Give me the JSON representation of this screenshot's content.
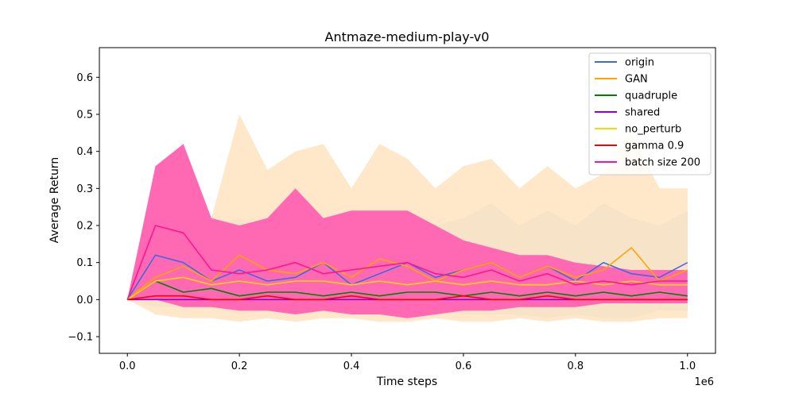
{
  "chart_data": {
    "type": "line",
    "title": "Antmaze-medium-play-v0",
    "xlabel": "Time steps",
    "ylabel": "Average Return",
    "x_offset_label": "1e6",
    "xlim": [
      -0.05,
      1.05
    ],
    "ylim": [
      -0.145,
      0.68
    ],
    "x_ticks": [
      0.0,
      0.2,
      0.4,
      0.6,
      0.8,
      1.0
    ],
    "x_tick_labels": [
      "0.0",
      "0.2",
      "0.4",
      "0.6",
      "0.8",
      "1.0"
    ],
    "y_ticks": [
      -0.1,
      0.0,
      0.1,
      0.2,
      0.3,
      0.4,
      0.5,
      0.6
    ],
    "y_tick_labels": [
      "−0.1",
      "0.0",
      "0.1",
      "0.2",
      "0.3",
      "0.4",
      "0.5",
      "0.6"
    ],
    "legend_position": "top-right",
    "grid": false,
    "x": [
      0.0,
      0.05,
      0.1,
      0.15,
      0.2,
      0.25,
      0.3,
      0.35,
      0.4,
      0.45,
      0.5,
      0.55,
      0.6,
      0.65,
      0.7,
      0.75,
      0.8,
      0.85,
      0.9,
      0.95,
      1.0
    ],
    "series": [
      {
        "name": "origin",
        "color": "#4169e1",
        "band_color": "#a8d5e2",
        "values": [
          0.0,
          0.12,
          0.1,
          0.05,
          0.08,
          0.05,
          0.06,
          0.1,
          0.04,
          0.07,
          0.1,
          0.06,
          0.08,
          0.1,
          0.06,
          0.09,
          0.05,
          0.1,
          0.07,
          0.06,
          0.1
        ],
        "band": [
          [
            0.0,
            0.0
          ],
          [
            -0.02,
            0.28
          ],
          [
            -0.02,
            0.25
          ],
          [
            -0.02,
            0.2
          ],
          [
            -0.04,
            0.22
          ],
          [
            -0.03,
            0.18
          ],
          [
            -0.04,
            0.2
          ],
          [
            -0.03,
            0.22
          ],
          [
            -0.04,
            0.18
          ],
          [
            -0.03,
            0.2
          ],
          [
            -0.05,
            0.24
          ],
          [
            -0.03,
            0.2
          ],
          [
            -0.04,
            0.22
          ],
          [
            -0.04,
            0.26
          ],
          [
            -0.04,
            0.2
          ],
          [
            -0.05,
            0.24
          ],
          [
            -0.04,
            0.2
          ],
          [
            -0.05,
            0.26
          ],
          [
            -0.05,
            0.22
          ],
          [
            -0.03,
            0.2
          ],
          [
            -0.03,
            0.24
          ]
        ]
      },
      {
        "name": "GAN",
        "color": "#ffa500",
        "band_color": "#ffe4c4",
        "values": [
          0.0,
          0.06,
          0.09,
          0.05,
          0.12,
          0.08,
          0.07,
          0.1,
          0.06,
          0.11,
          0.09,
          0.05,
          0.08,
          0.1,
          0.06,
          0.09,
          0.06,
          0.08,
          0.14,
          0.05,
          0.08
        ],
        "band": [
          [
            0.0,
            0.0
          ],
          [
            -0.04,
            0.2
          ],
          [
            -0.05,
            0.3
          ],
          [
            -0.05,
            0.22
          ],
          [
            -0.06,
            0.5
          ],
          [
            -0.05,
            0.35
          ],
          [
            -0.06,
            0.4
          ],
          [
            -0.05,
            0.42
          ],
          [
            -0.05,
            0.3
          ],
          [
            -0.06,
            0.42
          ],
          [
            -0.06,
            0.38
          ],
          [
            -0.05,
            0.3
          ],
          [
            -0.06,
            0.36
          ],
          [
            -0.06,
            0.38
          ],
          [
            -0.05,
            0.3
          ],
          [
            -0.06,
            0.36
          ],
          [
            -0.05,
            0.3
          ],
          [
            -0.06,
            0.34
          ],
          [
            -0.06,
            0.45
          ],
          [
            -0.05,
            0.3
          ],
          [
            -0.05,
            0.3
          ]
        ]
      },
      {
        "name": "quadruple",
        "color": "#008000",
        "values": [
          0.0,
          0.05,
          0.02,
          0.03,
          0.01,
          0.02,
          0.02,
          0.01,
          0.02,
          0.01,
          0.02,
          0.02,
          0.01,
          0.02,
          0.01,
          0.02,
          0.01,
          0.02,
          0.01,
          0.02,
          0.01
        ]
      },
      {
        "name": "shared",
        "color": "#9400d3",
        "values": [
          0.0,
          0.0,
          0.0,
          0.0,
          0.0,
          0.0,
          0.0,
          0.0,
          0.0,
          0.0,
          0.0,
          0.0,
          0.0,
          0.0,
          0.0,
          0.0,
          0.0,
          0.0,
          0.0,
          0.0,
          0.0
        ]
      },
      {
        "name": "no_perturb",
        "color": "#ffd700",
        "values": [
          0.0,
          0.05,
          0.06,
          0.04,
          0.05,
          0.04,
          0.05,
          0.05,
          0.04,
          0.05,
          0.04,
          0.05,
          0.04,
          0.05,
          0.04,
          0.04,
          0.05,
          0.04,
          0.05,
          0.04,
          0.04
        ]
      },
      {
        "name": "gamma 0.9",
        "color": "#ff0000",
        "values": [
          0.0,
          0.01,
          0.01,
          0.0,
          0.0,
          0.01,
          0.0,
          0.0,
          0.01,
          0.0,
          0.0,
          0.0,
          0.01,
          0.0,
          0.0,
          0.01,
          0.0,
          0.0,
          0.0,
          0.0,
          0.0
        ]
      },
      {
        "name": "batch size 200",
        "color": "#ff1493",
        "band_color": "#ff69b4",
        "values": [
          0.0,
          0.2,
          0.18,
          0.08,
          0.07,
          0.08,
          0.1,
          0.07,
          0.08,
          0.09,
          0.1,
          0.07,
          0.06,
          0.08,
          0.05,
          0.07,
          0.04,
          0.05,
          0.04,
          0.05,
          0.05
        ],
        "band": [
          [
            0.0,
            0.0
          ],
          [
            0.0,
            0.36
          ],
          [
            -0.02,
            0.42
          ],
          [
            -0.02,
            0.22
          ],
          [
            -0.03,
            0.2
          ],
          [
            -0.03,
            0.22
          ],
          [
            -0.04,
            0.3
          ],
          [
            -0.03,
            0.22
          ],
          [
            -0.04,
            0.24
          ],
          [
            -0.04,
            0.24
          ],
          [
            -0.05,
            0.24
          ],
          [
            -0.04,
            0.2
          ],
          [
            -0.03,
            0.16
          ],
          [
            -0.03,
            0.14
          ],
          [
            -0.02,
            0.12
          ],
          [
            -0.02,
            0.12
          ],
          [
            -0.02,
            0.1
          ],
          [
            -0.01,
            0.09
          ],
          [
            -0.01,
            0.08
          ],
          [
            -0.01,
            0.08
          ],
          [
            -0.01,
            0.08
          ]
        ]
      }
    ]
  }
}
